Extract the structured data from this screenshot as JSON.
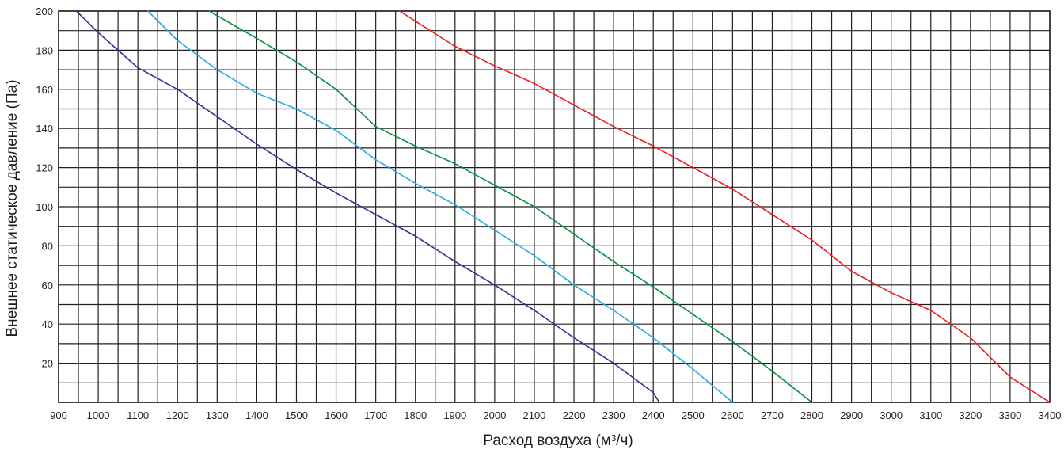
{
  "chart_data": {
    "type": "line",
    "title": "",
    "xlabel": "Расход воздуха (м³/ч)",
    "ylabel": "Внешнее статическое давление (Па)",
    "xlim": [
      900,
      3400
    ],
    "ylim": [
      0,
      200
    ],
    "x_ticks": [
      900,
      1000,
      1100,
      1200,
      1300,
      1400,
      1500,
      1600,
      1700,
      1800,
      1900,
      2000,
      2100,
      2200,
      2300,
      2400,
      2500,
      2600,
      2700,
      2800,
      2900,
      3000,
      3100,
      3200,
      3300,
      3400
    ],
    "y_ticks": [
      20,
      40,
      60,
      80,
      100,
      120,
      140,
      160,
      180,
      200
    ],
    "grid": true,
    "grid_x_step": 50,
    "grid_y_step": 10,
    "legend": "none",
    "series": [
      {
        "color": "#2e3192",
        "points": [
          [
            945,
            200
          ],
          [
            1000,
            189
          ],
          [
            1100,
            171
          ],
          [
            1200,
            160
          ],
          [
            1300,
            146
          ],
          [
            1400,
            132
          ],
          [
            1500,
            119
          ],
          [
            1600,
            107
          ],
          [
            1700,
            96
          ],
          [
            1800,
            85
          ],
          [
            1900,
            72
          ],
          [
            2000,
            60
          ],
          [
            2100,
            47
          ],
          [
            2200,
            33
          ],
          [
            2300,
            20
          ],
          [
            2400,
            5
          ],
          [
            2415,
            0
          ]
        ]
      },
      {
        "color": "#29abe2",
        "points": [
          [
            1125,
            200
          ],
          [
            1200,
            185
          ],
          [
            1300,
            170
          ],
          [
            1400,
            158
          ],
          [
            1500,
            150
          ],
          [
            1600,
            139
          ],
          [
            1700,
            124
          ],
          [
            1800,
            112
          ],
          [
            1900,
            101
          ],
          [
            2000,
            88
          ],
          [
            2100,
            75
          ],
          [
            2200,
            60
          ],
          [
            2300,
            47
          ],
          [
            2400,
            33
          ],
          [
            2500,
            17
          ],
          [
            2600,
            0
          ]
        ]
      },
      {
        "color": "#009245",
        "points": [
          [
            1280,
            200
          ],
          [
            1400,
            186
          ],
          [
            1500,
            174
          ],
          [
            1600,
            160
          ],
          [
            1700,
            141
          ],
          [
            1800,
            131
          ],
          [
            1900,
            122
          ],
          [
            2000,
            111
          ],
          [
            2100,
            100
          ],
          [
            2200,
            86
          ],
          [
            2300,
            72
          ],
          [
            2400,
            59
          ],
          [
            2500,
            45
          ],
          [
            2600,
            31
          ],
          [
            2700,
            16
          ],
          [
            2800,
            0
          ]
        ]
      },
      {
        "color": "#ed1c24",
        "points": [
          [
            1760,
            200
          ],
          [
            1900,
            182
          ],
          [
            2000,
            172
          ],
          [
            2100,
            163
          ],
          [
            2200,
            152
          ],
          [
            2300,
            141
          ],
          [
            2400,
            131
          ],
          [
            2500,
            120
          ],
          [
            2600,
            109
          ],
          [
            2700,
            96
          ],
          [
            2800,
            83
          ],
          [
            2900,
            67
          ],
          [
            3000,
            56
          ],
          [
            3100,
            47
          ],
          [
            3200,
            33
          ],
          [
            3300,
            13
          ],
          [
            3400,
            0
          ]
        ]
      }
    ]
  }
}
